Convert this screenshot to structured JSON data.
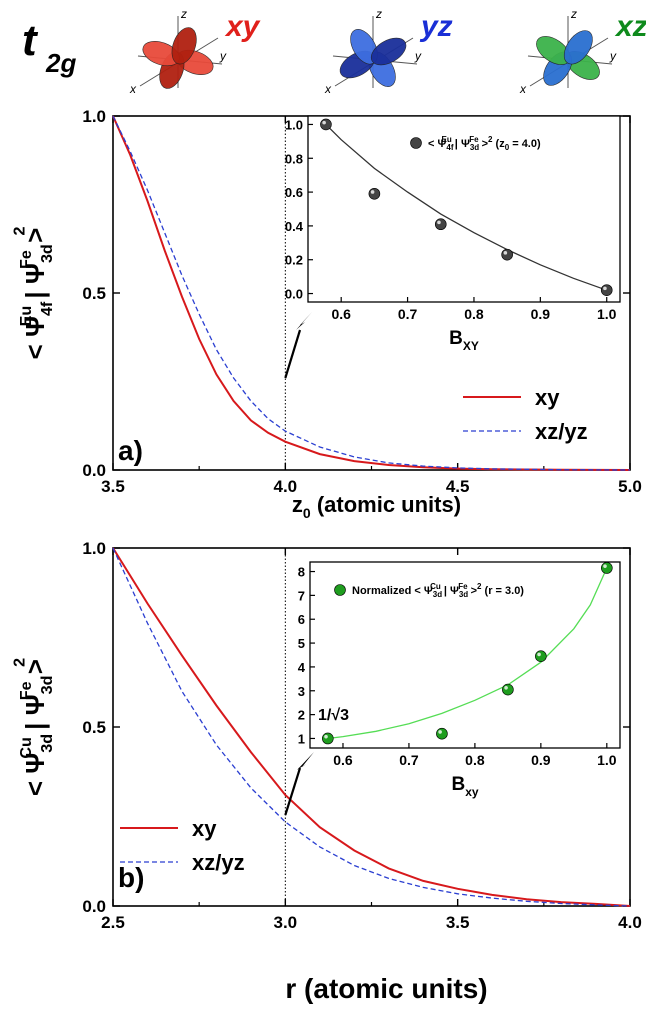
{
  "header": {
    "t_main": "t",
    "t_sub": "2g",
    "orbitals": [
      {
        "name": "xy",
        "color": "#e0201b",
        "ax_z": "z",
        "ax_x": "x",
        "ax_y": "y"
      },
      {
        "name": "yz",
        "color": "#1a2fd6",
        "ax_z": "z",
        "ax_x": "x",
        "ax_y": "y"
      },
      {
        "name": "xz",
        "color": "#0e8a1c",
        "ax_z": "z",
        "ax_x": "x",
        "ax_y": "y"
      }
    ]
  },
  "colors": {
    "xy": "#d7191c",
    "xzyz": "#2b3fd1",
    "insetA": "#333333",
    "insetB": "#1f9d1f",
    "insetB_line": "#55dd55"
  },
  "chart_data": [
    {
      "type": "line",
      "panel_label": "a)",
      "xlabel_main": "z",
      "xlabel_sub": "0",
      "xlabel_rest": " (atomic units)",
      "ylabel": {
        "pre": "< Ψ",
        "sup1": "Eu",
        "sub1": "4f",
        "mid": " | Ψ",
        "sup2": "Fe",
        "sub2": "3d",
        "post": " >",
        "pow": "2"
      },
      "xlim": [
        3.5,
        5.0
      ],
      "ylim": [
        0,
        1.0
      ],
      "xticks": [
        "3.5",
        "4.0",
        "4.5",
        "5.0"
      ],
      "yticks": [
        "0.0",
        "0.5",
        "1.0"
      ],
      "marker_x": 4.0,
      "series": [
        {
          "name": "xy",
          "x": [
            3.5,
            3.55,
            3.6,
            3.65,
            3.7,
            3.75,
            3.8,
            3.85,
            3.9,
            3.95,
            4.0,
            4.1,
            4.2,
            4.3,
            4.4,
            4.5,
            4.6,
            4.8,
            5.0
          ],
          "y": [
            1.0,
            0.89,
            0.76,
            0.62,
            0.49,
            0.37,
            0.27,
            0.195,
            0.14,
            0.105,
            0.08,
            0.045,
            0.025,
            0.014,
            0.008,
            0.004,
            0.002,
            0.0005,
            0.0
          ]
        },
        {
          "name": "xz/yz",
          "x": [
            3.5,
            3.55,
            3.6,
            3.65,
            3.7,
            3.75,
            3.8,
            3.85,
            3.9,
            3.95,
            4.0,
            4.1,
            4.2,
            4.3,
            4.4,
            4.5,
            4.6,
            4.8,
            5.0
          ],
          "y": [
            1.0,
            0.9,
            0.79,
            0.67,
            0.55,
            0.44,
            0.34,
            0.26,
            0.195,
            0.145,
            0.11,
            0.065,
            0.037,
            0.02,
            0.011,
            0.006,
            0.003,
            0.0008,
            0.0
          ]
        }
      ],
      "inset": {
        "type": "scatter",
        "xlabel_main": "B",
        "xlabel_sub": "XY",
        "legend": {
          "pre": "< Ψ",
          "sup1": "Eu",
          "sub1": "4f",
          "mid": " | Ψ",
          "sup2": "Fe",
          "sub2": "3d",
          "post": " >",
          "pow": "2",
          "tail_pre": " (z",
          "tail_sub": "0",
          "tail_post": " = 4.0)"
        },
        "xlim": [
          0.55,
          1.02
        ],
        "ylim": [
          -0.05,
          1.05
        ],
        "xticks": [
          "0.6",
          "0.7",
          "0.8",
          "0.9",
          "1.0"
        ],
        "yticks": [
          "0.0",
          "0.2",
          "0.4",
          "0.6",
          "0.8",
          "1.0"
        ],
        "points": {
          "x": [
            0.577,
            0.65,
            0.75,
            0.85,
            1.0
          ],
          "y": [
            1.0,
            0.59,
            0.41,
            0.23,
            0.02
          ]
        },
        "fit": {
          "x": [
            0.577,
            0.6,
            0.65,
            0.7,
            0.75,
            0.8,
            0.85,
            0.9,
            0.95,
            1.0
          ],
          "y": [
            1.0,
            0.91,
            0.74,
            0.6,
            0.47,
            0.36,
            0.26,
            0.17,
            0.09,
            0.02
          ]
        }
      }
    },
    {
      "type": "line",
      "panel_label": "b)",
      "xlabel": "r (atomic units)",
      "ylabel": {
        "pre": "< Ψ",
        "sup1": "Cu",
        "sub1": "3d",
        "mid": " | Ψ",
        "sup2": "Fe",
        "sub2": "3d",
        "post": " >",
        "pow": "2"
      },
      "xlim": [
        2.5,
        4.0
      ],
      "ylim": [
        0,
        1.0
      ],
      "xticks": [
        "2.5",
        "3.0",
        "3.5",
        "4.0"
      ],
      "yticks": [
        "0.0",
        "0.5",
        "1.0"
      ],
      "marker_x": 3.0,
      "series": [
        {
          "name": "xy",
          "x": [
            2.5,
            2.6,
            2.7,
            2.8,
            2.9,
            3.0,
            3.1,
            3.2,
            3.3,
            3.4,
            3.5,
            3.6,
            3.7,
            3.8,
            3.9,
            4.0
          ],
          "y": [
            1.0,
            0.845,
            0.7,
            0.56,
            0.43,
            0.31,
            0.22,
            0.155,
            0.105,
            0.07,
            0.048,
            0.031,
            0.019,
            0.011,
            0.006,
            0.0
          ]
        },
        {
          "name": "xz/yz",
          "x": [
            2.5,
            2.6,
            2.7,
            2.8,
            2.9,
            3.0,
            3.1,
            3.2,
            3.3,
            3.4,
            3.5,
            3.6,
            3.7,
            3.8,
            3.9,
            4.0
          ],
          "y": [
            1.0,
            0.79,
            0.6,
            0.45,
            0.33,
            0.235,
            0.165,
            0.113,
            0.077,
            0.052,
            0.034,
            0.022,
            0.013,
            0.007,
            0.003,
            0.0
          ]
        }
      ],
      "inset": {
        "type": "scatter",
        "xlabel_main": "B",
        "xlabel_sub": "xy",
        "legend": {
          "label": "Normalized",
          "pre": "< Ψ",
          "sup1": "Cu",
          "sub1": "3d",
          "mid": " | Ψ",
          "sup2": "Fe",
          "sub2": "3d",
          "post": " >",
          "pow": "2",
          "tail": " (r = 3.0)"
        },
        "annotation": "1/√3",
        "xlim": [
          0.55,
          1.02
        ],
        "ylim": [
          0.6,
          8.4
        ],
        "xticks": [
          "0.6",
          "0.7",
          "0.8",
          "0.9",
          "1.0"
        ],
        "yticks": [
          "1",
          "2",
          "3",
          "4",
          "5",
          "6",
          "7",
          "8"
        ],
        "points": {
          "x": [
            0.577,
            0.75,
            0.85,
            0.9,
            1.0
          ],
          "y": [
            1.0,
            1.2,
            3.05,
            4.45,
            8.15
          ]
        },
        "fit": {
          "x": [
            0.577,
            0.6,
            0.65,
            0.7,
            0.75,
            0.8,
            0.85,
            0.9,
            0.95,
            0.975,
            1.0
          ],
          "y": [
            1.0,
            1.08,
            1.3,
            1.62,
            2.05,
            2.6,
            3.25,
            4.2,
            5.6,
            6.6,
            8.15
          ]
        }
      }
    }
  ]
}
